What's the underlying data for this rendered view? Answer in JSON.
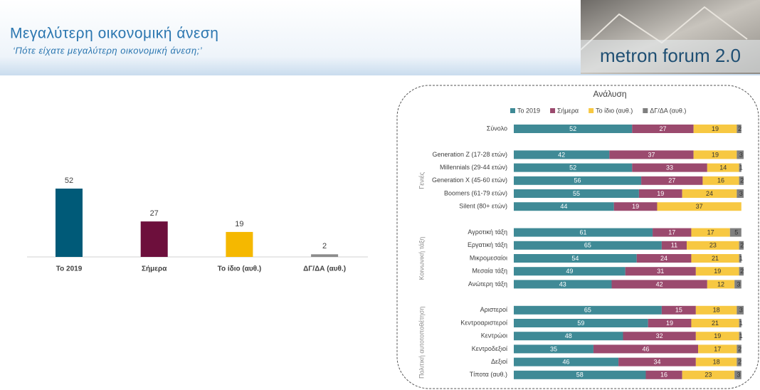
{
  "header": {
    "title": "Μεγαλύτερη οικονομική άνεση",
    "subtitle": "‘Πότε είχατε μεγαλύτερη οικονομική άνεση;’",
    "logo": "metron forum 2.0"
  },
  "chart_data": [
    {
      "type": "bar",
      "categories": [
        "Το 2019",
        "Σήμερα",
        "Το ίδιο (αυθ.)",
        "ΔΓ/ΔΑ (αυθ.)"
      ],
      "values": [
        52,
        27,
        19,
        2
      ],
      "colors": [
        "#005a78",
        "#6d0f3c",
        "#f5b800",
        "#8c8c8c"
      ]
    },
    {
      "type": "stacked-hbar",
      "title": "Ανάλυση",
      "categories": [
        "Σύνολο",
        null,
        "Generation Z (17-28 ετών)",
        "Millennials (29-44 ετών)",
        "Generation X (45-60 ετών)",
        "Boomers (61-79 ετών)",
        "Silent (80+ ετών)",
        null,
        "Αγροτική τάξη",
        "Εργατική τάξη",
        "Μικρομεσαίοι",
        "Μεσαία τάξη",
        "Ανώτερη τάξη",
        null,
        "Αριστεροί",
        "Κεντροαριστεροί",
        "Κεντρώοι",
        "Κεντροδεξιοί",
        "Δεξιοί",
        "Τίποτα (αυθ.)"
      ],
      "group_labels": [
        null,
        "Γενιές",
        "Κοινωνική τάξη",
        "Πολιτική αυτοτοποθέτηση"
      ],
      "series": [
        {
          "name": "Το 2019",
          "color": "#3f8a96",
          "values": [
            52,
            null,
            42,
            52,
            56,
            55,
            44,
            null,
            61,
            65,
            54,
            49,
            43,
            null,
            65,
            59,
            48,
            35,
            46,
            58
          ]
        },
        {
          "name": "Σήμερα",
          "color": "#9b4a6e",
          "values": [
            27,
            null,
            37,
            33,
            27,
            19,
            19,
            null,
            17,
            11,
            24,
            31,
            42,
            null,
            15,
            19,
            32,
            46,
            34,
            16
          ]
        },
        {
          "name": "Το ίδιο (αυθ.)",
          "color": "#f7c842",
          "values": [
            19,
            null,
            19,
            14,
            16,
            24,
            37,
            null,
            17,
            23,
            21,
            19,
            12,
            null,
            18,
            21,
            19,
            17,
            18,
            23
          ]
        },
        {
          "name": "ΔΓ/ΔΑ (αυθ.)",
          "color": "#7f7f7f",
          "values": [
            2,
            null,
            3,
            1,
            2,
            3,
            null,
            null,
            5,
            2,
            1,
            2,
            3,
            null,
            3,
            1,
            1,
            2,
            2,
            3
          ]
        }
      ],
      "legend": "top"
    }
  ]
}
